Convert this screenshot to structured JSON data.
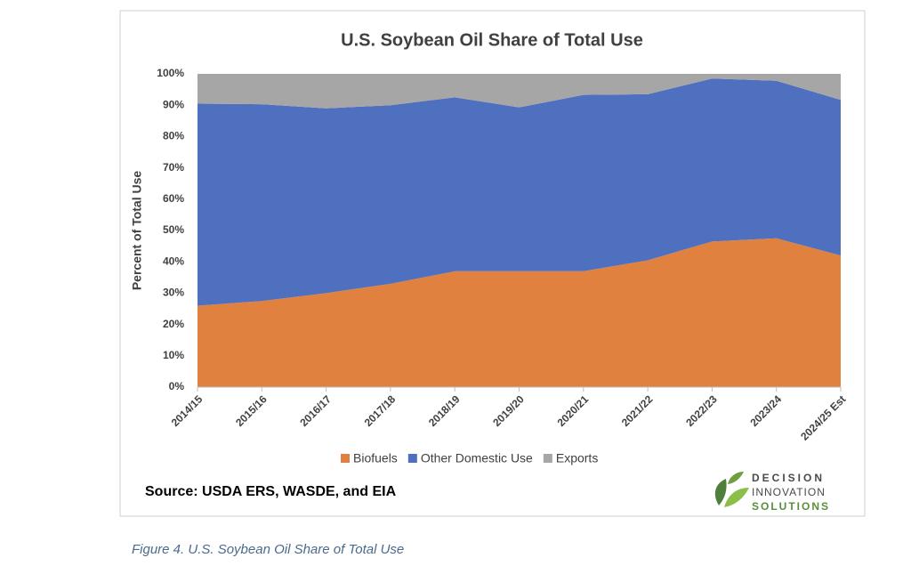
{
  "chart_data": {
    "type": "stacked_area",
    "title": "U.S. Soybean Oil Share of Total Use",
    "y_label": "Percent of Total Use",
    "categories": [
      "2014/15",
      "2015/16",
      "2016/17",
      "2017/18",
      "2018/19",
      "2019/20",
      "2020/21",
      "2021/22",
      "2022/23",
      "2023/24",
      "2024/25 Est"
    ],
    "series": [
      {
        "name": "Biofuels",
        "color": "#e0813f",
        "values": [
          26,
          27.5,
          30,
          33,
          37,
          37,
          37,
          40.5,
          46.5,
          47.5,
          42
        ]
      },
      {
        "name": "Other Domestic Use",
        "color": "#4f6fbf",
        "values": [
          64.5,
          62.8,
          59,
          57,
          55.5,
          52.3,
          56.3,
          53,
          52,
          50.3,
          49.7
        ]
      },
      {
        "name": "Exports",
        "color": "#a6a6a6",
        "values": [
          9.5,
          9.7,
          11,
          10,
          7.5,
          10.7,
          6.7,
          6.5,
          1.5,
          2.2,
          8.3
        ]
      }
    ],
    "ylim": [
      0,
      100
    ],
    "yticks": [
      {
        "value": 0,
        "label": "0%"
      },
      {
        "value": 10,
        "label": "10%"
      },
      {
        "value": 20,
        "label": "20%"
      },
      {
        "value": 30,
        "label": "30%"
      },
      {
        "value": 40,
        "label": "40%"
      },
      {
        "value": 50,
        "label": "50%"
      },
      {
        "value": 60,
        "label": "60%"
      },
      {
        "value": 70,
        "label": "70%"
      },
      {
        "value": 80,
        "label": "80%"
      },
      {
        "value": 90,
        "label": "90%"
      },
      {
        "value": 100,
        "label": "100%"
      }
    ],
    "legend": "bottom",
    "grid": false
  },
  "source": "Source: USDA ERS, WASDE, and EIA",
  "logo": {
    "line1": "DECISION",
    "line2": "INNOVATION",
    "line3": "SOLUTIONS"
  },
  "caption": "Figure 4. U.S. Soybean Oil Share of Total Use"
}
